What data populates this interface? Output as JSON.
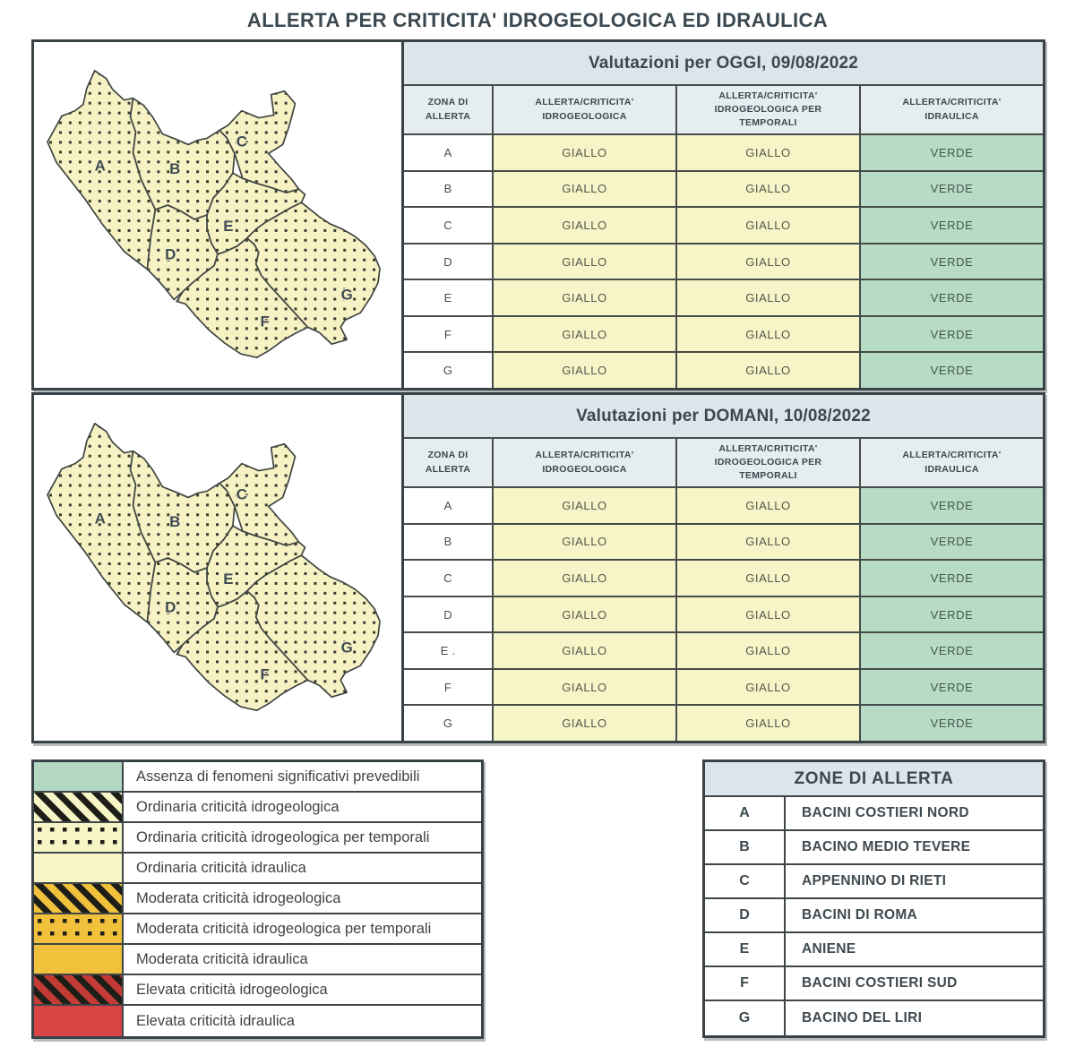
{
  "title": "ALLERTA PER CRITICITA' IDROGEOLOGICA ED IDRAULICA",
  "assessments": [
    {
      "title": "Valutazioni per OGGI, 09/08/2022",
      "columns": [
        "ZONA DI ALLERTA",
        "ALLERTA/CRITICITA' IDROGEOLOGICA",
        "ALLERTA/CRITICITA' IDROGEOLOGICA PER TEMPORALI",
        "ALLERTA/CRITICITA' IDRAULICA"
      ],
      "rows": [
        {
          "zone": "A",
          "hydrogeological": "GIALLO",
          "thunderstorms": "GIALLO",
          "hydraulic": "VERDE"
        },
        {
          "zone": "B",
          "hydrogeological": "GIALLO",
          "thunderstorms": "GIALLO",
          "hydraulic": "VERDE"
        },
        {
          "zone": "C",
          "hydrogeological": "GIALLO",
          "thunderstorms": "GIALLO",
          "hydraulic": "VERDE"
        },
        {
          "zone": "D",
          "hydrogeological": "GIALLO",
          "thunderstorms": "GIALLO",
          "hydraulic": "VERDE"
        },
        {
          "zone": "E",
          "hydrogeological": "GIALLO",
          "thunderstorms": "GIALLO",
          "hydraulic": "VERDE"
        },
        {
          "zone": "F",
          "hydrogeological": "GIALLO",
          "thunderstorms": "GIALLO",
          "hydraulic": "VERDE"
        },
        {
          "zone": "G",
          "hydrogeological": "GIALLO",
          "thunderstorms": "GIALLO",
          "hydraulic": "VERDE"
        }
      ]
    },
    {
      "title": "Valutazioni per DOMANI, 10/08/2022",
      "columns": [
        "ZONA DI ALLERTA",
        "ALLERTA/CRITICITA' IDROGEOLOGICA",
        "ALLERTA/CRITICITA' IDROGEOLOGICA PER TEMPORALI",
        "ALLERTA/CRITICITA' IDRAULICA"
      ],
      "rows": [
        {
          "zone": "A",
          "hydrogeological": "GIALLO",
          "thunderstorms": "GIALLO",
          "hydraulic": "VERDE"
        },
        {
          "zone": "B",
          "hydrogeological": "GIALLO",
          "thunderstorms": "GIALLO",
          "hydraulic": "VERDE"
        },
        {
          "zone": "C",
          "hydrogeological": "GIALLO",
          "thunderstorms": "GIALLO",
          "hydraulic": "VERDE"
        },
        {
          "zone": "D",
          "hydrogeological": "GIALLO",
          "thunderstorms": "GIALLO",
          "hydraulic": "VERDE"
        },
        {
          "zone": "E .",
          "hydrogeological": "GIALLO",
          "thunderstorms": "GIALLO",
          "hydraulic": "VERDE"
        },
        {
          "zone": "F",
          "hydrogeological": "GIALLO",
          "thunderstorms": "GIALLO",
          "hydraulic": "VERDE"
        },
        {
          "zone": "G",
          "hydrogeological": "GIALLO",
          "thunderstorms": "GIALLO",
          "hydraulic": "VERDE"
        }
      ]
    }
  ],
  "legend": {
    "items": [
      {
        "label": "Assenza di fenomeni significativi prevedibili",
        "swatch": "solid-green"
      },
      {
        "label": "Ordinaria criticità idrogeologica",
        "swatch": "stripe-yellow"
      },
      {
        "label": "Ordinaria criticità idrogeologica per temporali",
        "swatch": "dots-yellow"
      },
      {
        "label": "Ordinaria criticità idraulica",
        "swatch": "solid-yellow"
      },
      {
        "label": "Moderata criticità idrogeologica",
        "swatch": "stripe-amber"
      },
      {
        "label": "Moderata criticità idrogeologica per temporali",
        "swatch": "dots-amber"
      },
      {
        "label": "Moderata criticità idraulica",
        "swatch": "solid-amber"
      },
      {
        "label": "Elevata criticità idrogeologica",
        "swatch": "stripe-red"
      },
      {
        "label": "Elevata criticità idraulica",
        "swatch": "solid-red"
      }
    ]
  },
  "zones_table": {
    "title": "ZONE DI ALLERTA",
    "rows": [
      {
        "letter": "A",
        "name": "BACINI COSTIERI NORD"
      },
      {
        "letter": "B",
        "name": "BACINO MEDIO TEVERE"
      },
      {
        "letter": "C",
        "name": "APPENNINO DI RIETI"
      },
      {
        "letter": "D",
        "name": "BACINI DI ROMA"
      },
      {
        "letter": "E",
        "name": "ANIENE"
      },
      {
        "letter": "F",
        "name": "BACINI COSTIERI SUD"
      },
      {
        "letter": "G",
        "name": "BACINO DEL LIRI"
      }
    ]
  },
  "map": {
    "zone_labels": [
      "A",
      "B",
      "C",
      "D",
      "E",
      "F",
      "G"
    ]
  },
  "colors": {
    "header_bg": "#dce6ea",
    "giallo_bg": "#f7f4c8",
    "verde_bg": "#b7dbc4",
    "legend_green": "#b2d8c2",
    "legend_yellow": "#f7f4c6",
    "legend_amber": "#f2c13c",
    "legend_red": "#d84343",
    "legend_red_striped": "#c43b35",
    "hatch_black": "#1e1e18",
    "panel_border": "#394247"
  }
}
